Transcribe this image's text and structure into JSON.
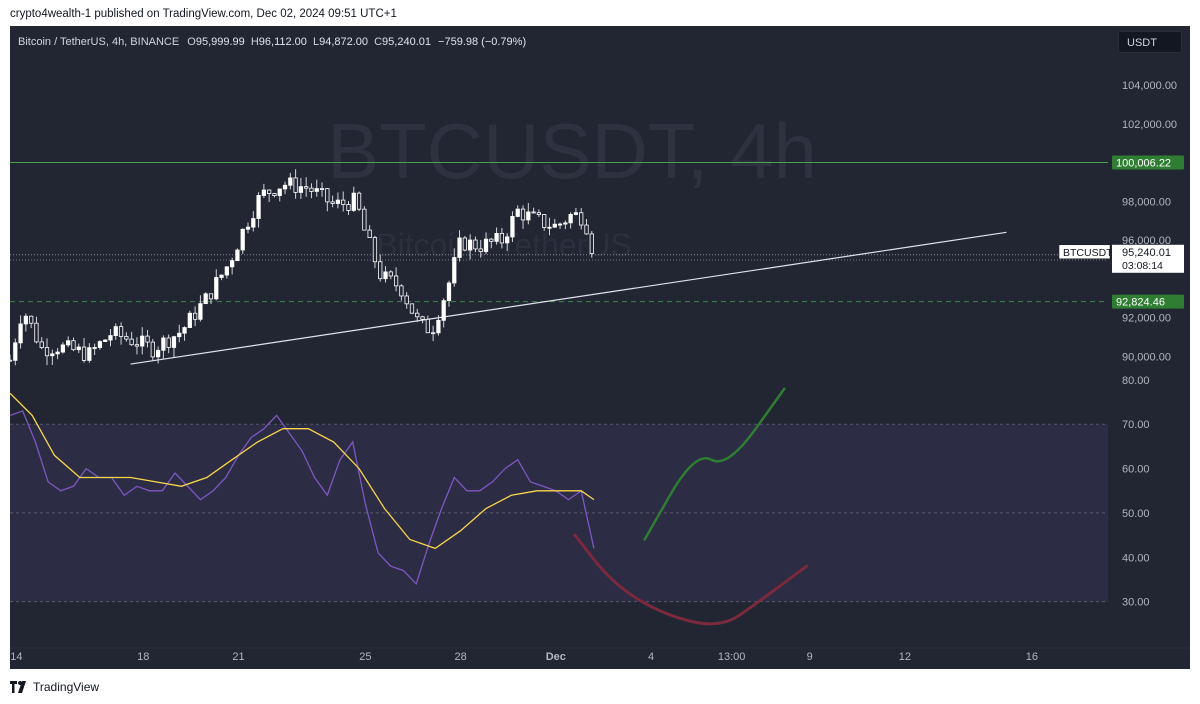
{
  "publish_line": "crypto4wealth-1 published on TradingView.com, Dec 02, 2024 09:51 UTC+1",
  "symbol": {
    "name": "Bitcoin / TetherUS, 4h, BINANCE",
    "o_label": "O",
    "o_value": "95,999.99",
    "h_label": "H",
    "h_value": "96,112.00",
    "l_label": "L",
    "l_value": "94,872.00",
    "c_label": "C",
    "c_value": "95,240.01",
    "change": "−759.98 (−0.79%)"
  },
  "currency_button": "USDT",
  "footer_brand": "TradingView",
  "icons": {
    "brand_logo": "tradingview-logo-icon"
  },
  "colors": {
    "background": "#222633",
    "candle_up": "#ffffff",
    "candle_down": "#ffffff",
    "resistance_line": "#4caf50",
    "level_badge": "#2e7d32",
    "rsi_line": "#7e57c2",
    "rsi_ma_line": "#f9d64a",
    "rsi_band": "#7e57c2",
    "projection_up": "#2e7d32",
    "projection_down": "#7a2a3c",
    "trendline": "#e0e3eb"
  },
  "chart_data": [
    {
      "type": "candlestick",
      "title": "",
      "watermark_title": "BTCUSDT, 4h",
      "watermark_subtitle": "Bitcoin / TetherUS",
      "ylim": [
        89500,
        105500
      ],
      "price_axis_ticks": [
        "104,000.00",
        "102,000.00",
        "98,000.00",
        "96,000.00",
        "92,000.00",
        "90,000.00"
      ],
      "price_axis_tick_values": [
        104000,
        102000,
        98000,
        96000,
        92000,
        90000
      ],
      "x_axis_ticks": [
        "14",
        "18",
        "21",
        "25",
        "28",
        "Dec",
        "4",
        "13:00",
        "9",
        "12",
        "16"
      ],
      "x_axis_tick_days": [
        14,
        18,
        21,
        25,
        28,
        31,
        34,
        36.54,
        39,
        42,
        46
      ],
      "x_range_days": [
        13.8,
        48.4
      ],
      "levels": [
        {
          "label": "100,006.22",
          "value": 100006.22,
          "style": "solid"
        },
        {
          "label": "94,970.66",
          "value": 94970.66,
          "style": "dotted"
        },
        {
          "label": "92,824.46",
          "value": 92824.46,
          "style": "dashed"
        }
      ],
      "last_price": {
        "symbol": "BTCUSDT",
        "price": "95,240.01",
        "countdown": "03:08:14",
        "value": 95240.01
      },
      "trendline": {
        "from": [
          17.6,
          89600
        ],
        "to": [
          45.2,
          96400
        ]
      },
      "candles_keypoints": [
        {
          "day": 13.8,
          "close": 89800
        },
        {
          "day": 14.2,
          "close": 92500
        },
        {
          "day": 14.8,
          "close": 90400
        },
        {
          "day": 15.3,
          "close": 90500
        },
        {
          "day": 16.3,
          "close": 90100
        },
        {
          "day": 17.0,
          "close": 91200
        },
        {
          "day": 17.7,
          "close": 90800
        },
        {
          "day": 18.3,
          "close": 90400
        },
        {
          "day": 19.2,
          "close": 91300
        },
        {
          "day": 20.0,
          "close": 93000
        },
        {
          "day": 20.7,
          "close": 94800
        },
        {
          "day": 21.2,
          "close": 96700
        },
        {
          "day": 21.7,
          "close": 98300
        },
        {
          "day": 22.4,
          "close": 98900
        },
        {
          "day": 23.2,
          "close": 98700
        },
        {
          "day": 24.0,
          "close": 97800
        },
        {
          "day": 24.7,
          "close": 98000
        },
        {
          "day": 25.0,
          "close": 96300
        },
        {
          "day": 25.5,
          "close": 94100
        },
        {
          "day": 26.1,
          "close": 93600
        },
        {
          "day": 26.7,
          "close": 91600
        },
        {
          "day": 27.1,
          "close": 91400
        },
        {
          "day": 27.6,
          "close": 93600
        },
        {
          "day": 28.0,
          "close": 95900
        },
        {
          "day": 28.6,
          "close": 95700
        },
        {
          "day": 29.3,
          "close": 96000
        },
        {
          "day": 29.8,
          "close": 97500
        },
        {
          "day": 30.4,
          "close": 97000
        },
        {
          "day": 31.0,
          "close": 96700
        },
        {
          "day": 31.5,
          "close": 97300
        },
        {
          "day": 31.9,
          "close": 97200
        },
        {
          "day": 32.2,
          "close": 95240
        }
      ]
    },
    {
      "type": "line",
      "title": "",
      "ylim": [
        20,
        82
      ],
      "y_axis_ticks": [
        "80.00",
        "70.00",
        "60.00",
        "50.00",
        "40.00",
        "30.00"
      ],
      "y_axis_tick_values": [
        80,
        70,
        60,
        50,
        40,
        30
      ],
      "bands": {
        "upper": 70,
        "middle": 50,
        "lower": 30
      },
      "series": [
        {
          "values_x_days": [
            13.8,
            14.2,
            14.6,
            15.0,
            15.4,
            15.8,
            16.2,
            16.6,
            17.0,
            17.4,
            17.8,
            18.2,
            18.6,
            19.0,
            19.4,
            19.8,
            20.2,
            20.6,
            21.0,
            21.4,
            21.8,
            22.2,
            22.6,
            23.0,
            23.4,
            23.8,
            24.2,
            24.6,
            25.0,
            25.4,
            25.8,
            26.2,
            26.6,
            27.0,
            27.4,
            27.8,
            28.2,
            28.6,
            29.0,
            29.4,
            29.8,
            30.2,
            30.6,
            31.0,
            31.4,
            31.8,
            32.2
          ],
          "values": [
            72,
            73,
            66,
            57,
            55,
            56,
            60,
            58,
            58,
            54,
            56,
            55,
            55,
            59,
            56,
            53,
            55,
            58,
            63,
            67,
            69,
            72,
            68,
            64,
            58,
            54,
            62,
            66,
            52,
            41,
            38,
            37,
            34,
            43,
            51,
            58,
            55,
            55,
            57,
            60,
            62,
            57,
            56,
            55,
            53,
            55,
            42
          ]
        },
        {
          "values_x_days": [
            13.8,
            14.5,
            15.2,
            16.0,
            16.8,
            17.6,
            18.4,
            19.2,
            20.0,
            20.8,
            21.6,
            22.4,
            23.2,
            24.0,
            24.8,
            25.6,
            26.4,
            27.2,
            28.0,
            28.8,
            29.6,
            30.4,
            31.2,
            31.8,
            32.2
          ],
          "values": [
            77,
            72,
            63,
            58,
            58,
            58,
            57,
            56,
            58,
            62,
            66,
            69,
            69,
            66,
            60,
            51,
            44,
            42,
            46,
            51,
            54,
            55,
            55,
            55,
            53
          ]
        }
      ],
      "projection_up": [
        [
          33.8,
          44
        ],
        [
          35.4,
          64
        ],
        [
          36.4,
          60
        ],
        [
          38.2,
          78
        ]
      ],
      "projection_down": [
        [
          31.6,
          45
        ],
        [
          32.8,
          34
        ],
        [
          34.4,
          27
        ],
        [
          36.2,
          24
        ],
        [
          37.4,
          30
        ],
        [
          38.9,
          38
        ]
      ]
    }
  ]
}
